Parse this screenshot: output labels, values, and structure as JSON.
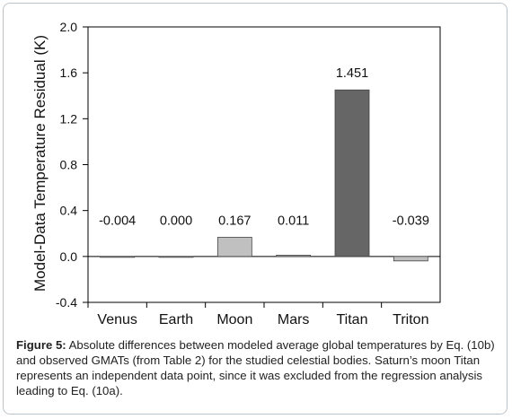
{
  "chart_data": {
    "type": "bar",
    "categories": [
      "Venus",
      "Earth",
      "Moon",
      "Mars",
      "Titan",
      "Triton"
    ],
    "values": [
      -0.004,
      0.0,
      0.167,
      0.011,
      1.451,
      -0.039
    ],
    "data_labels": [
      "-0.004",
      "0.000",
      "0.167",
      "0.011",
      "1.451",
      "-0.039"
    ],
    "bar_colors": [
      "#d9d9d9",
      "#d9d9d9",
      "#c0c0c0",
      "#c0c0c0",
      "#666666",
      "#c0c0c0"
    ],
    "title": "",
    "xlabel": "",
    "ylabel": "Model-Data Temperature Residual (K)",
    "ylim": [
      -0.4,
      2.0
    ],
    "yticks": [
      "-0.4",
      "0.0",
      "0.4",
      "0.8",
      "1.2",
      "1.6",
      "2.0"
    ],
    "grid": false,
    "legend": "none"
  },
  "caption": {
    "label": "Figure 5:",
    "text": " Absolute differences between modeled average global temperatures by Eq. (10b) and observed GMATs (from Table 2) for the studied celestial bodies. Saturn’s moon Titan represents an independent data point, since it was excluded from the regression analysis leading to Eq. (10a)."
  }
}
